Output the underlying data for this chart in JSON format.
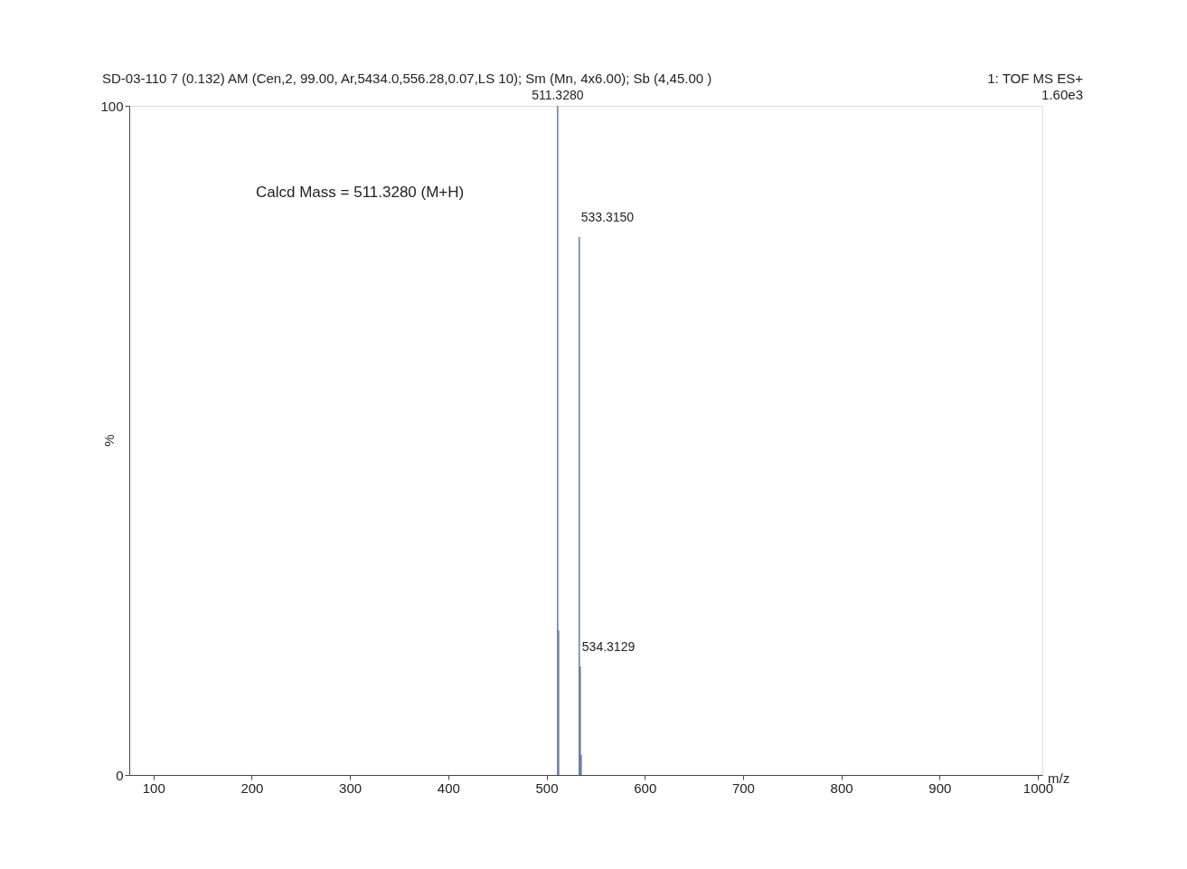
{
  "chart_data": {
    "type": "bar",
    "xlabel": "m/z",
    "ylabel": "%",
    "x": [
      511.328,
      512.33,
      533.315,
      534.3129,
      535.31
    ],
    "series": [
      {
        "color": "#6a7d99",
        "values": [
          100,
          21.6,
          80.4,
          16.2,
          3
        ]
      }
    ],
    "xlim": [
      80,
      1000
    ],
    "xticks": [
      100,
      200,
      300,
      400,
      500,
      600,
      700,
      800,
      900,
      1000
    ],
    "ylim": [
      0,
      100
    ],
    "yticks": [
      0,
      100
    ],
    "grid": false,
    "annotations": [
      "SD-03-110 7 (0.132) AM (Cen,2, 99.00, Ar,5434.0,556.28,0.07,LS 10); Sm (Mn, 4x6.00); Sb (4,45.00 )",
      "1: TOF MS ES+",
      "1.60e3",
      "Calcd Mass = 511.3280 (M+H)",
      {
        "text": "511.3280",
        "x": 511.328,
        "y": 100
      },
      {
        "text": "533.3150",
        "x": 533.315,
        "y": 80.4
      },
      {
        "text": "534.3129",
        "x": 534.3129,
        "y": 16.2
      }
    ]
  }
}
